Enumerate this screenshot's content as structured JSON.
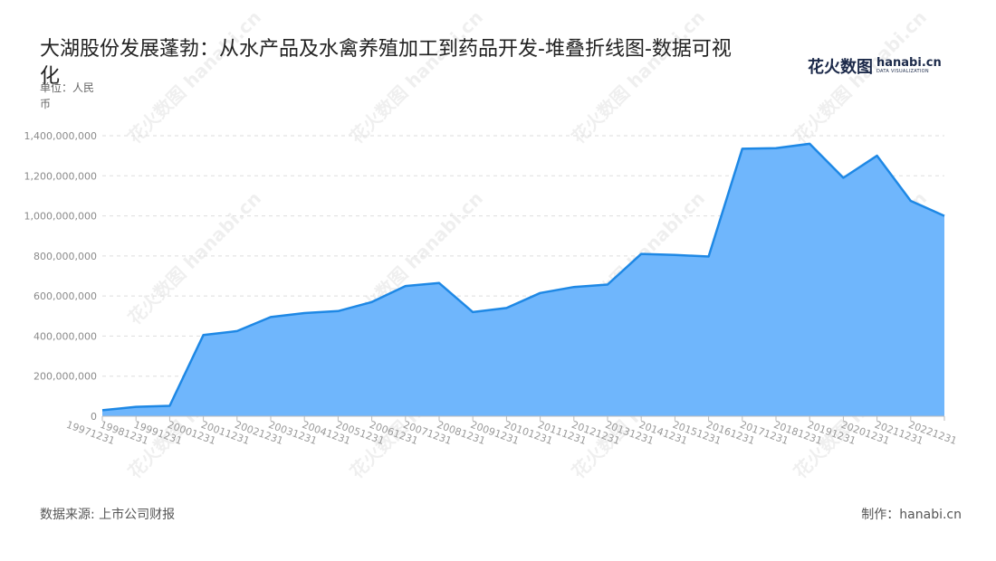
{
  "header": {
    "title": "大湖股份发展蓬勃：从水产品及水禽养殖加工到药品开发-堆叠折线图-数据可视化",
    "unit": "单位：人民币"
  },
  "brand": {
    "name_zh": "花火数图",
    "name_en": "hanabi.cn",
    "tagline": "DATA VISUALIZATION"
  },
  "footer": {
    "source": "数据来源: 上市公司财报",
    "credit": "制作：hanabi.cn"
  },
  "colors": {
    "line": "#1e88e5",
    "fill": "#6fb6fc",
    "grid": "#dddddd",
    "axis": "#bbbbbb"
  },
  "chart_data": {
    "type": "area",
    "categories": [
      "19971231",
      "19981231",
      "19991231",
      "20001231",
      "20011231",
      "20021231",
      "20031231",
      "20041231",
      "20051231",
      "20061231",
      "20071231",
      "20081231",
      "20091231",
      "20101231",
      "20111231",
      "20121231",
      "20131231",
      "20141231",
      "20151231",
      "20161231",
      "20171231",
      "20181231",
      "20191231",
      "20201231",
      "20211231",
      "20221231"
    ],
    "series": [
      {
        "values": [
          30000000,
          47000000,
          52000000,
          405000000,
          425000000,
          495000000,
          515000000,
          525000000,
          570000000,
          650000000,
          665000000,
          520000000,
          540000000,
          615000000,
          645000000,
          657000000,
          810000000,
          805000000,
          797000000,
          1335000000,
          1338000000,
          1360000000,
          1190000000,
          1300000000,
          1075000000,
          1000000000
        ]
      }
    ],
    "ylim": [
      0,
      1400000000
    ],
    "yticks": [
      0,
      200000000,
      400000000,
      600000000,
      800000000,
      1000000000,
      1200000000,
      1400000000
    ],
    "ytick_labels": [
      "0",
      "200,000,000",
      "400,000,000",
      "600,000,000",
      "800,000,000",
      "1,000,000,000",
      "1,200,000,000",
      "1,400,000,000"
    ],
    "grid": true,
    "legend": "none"
  }
}
